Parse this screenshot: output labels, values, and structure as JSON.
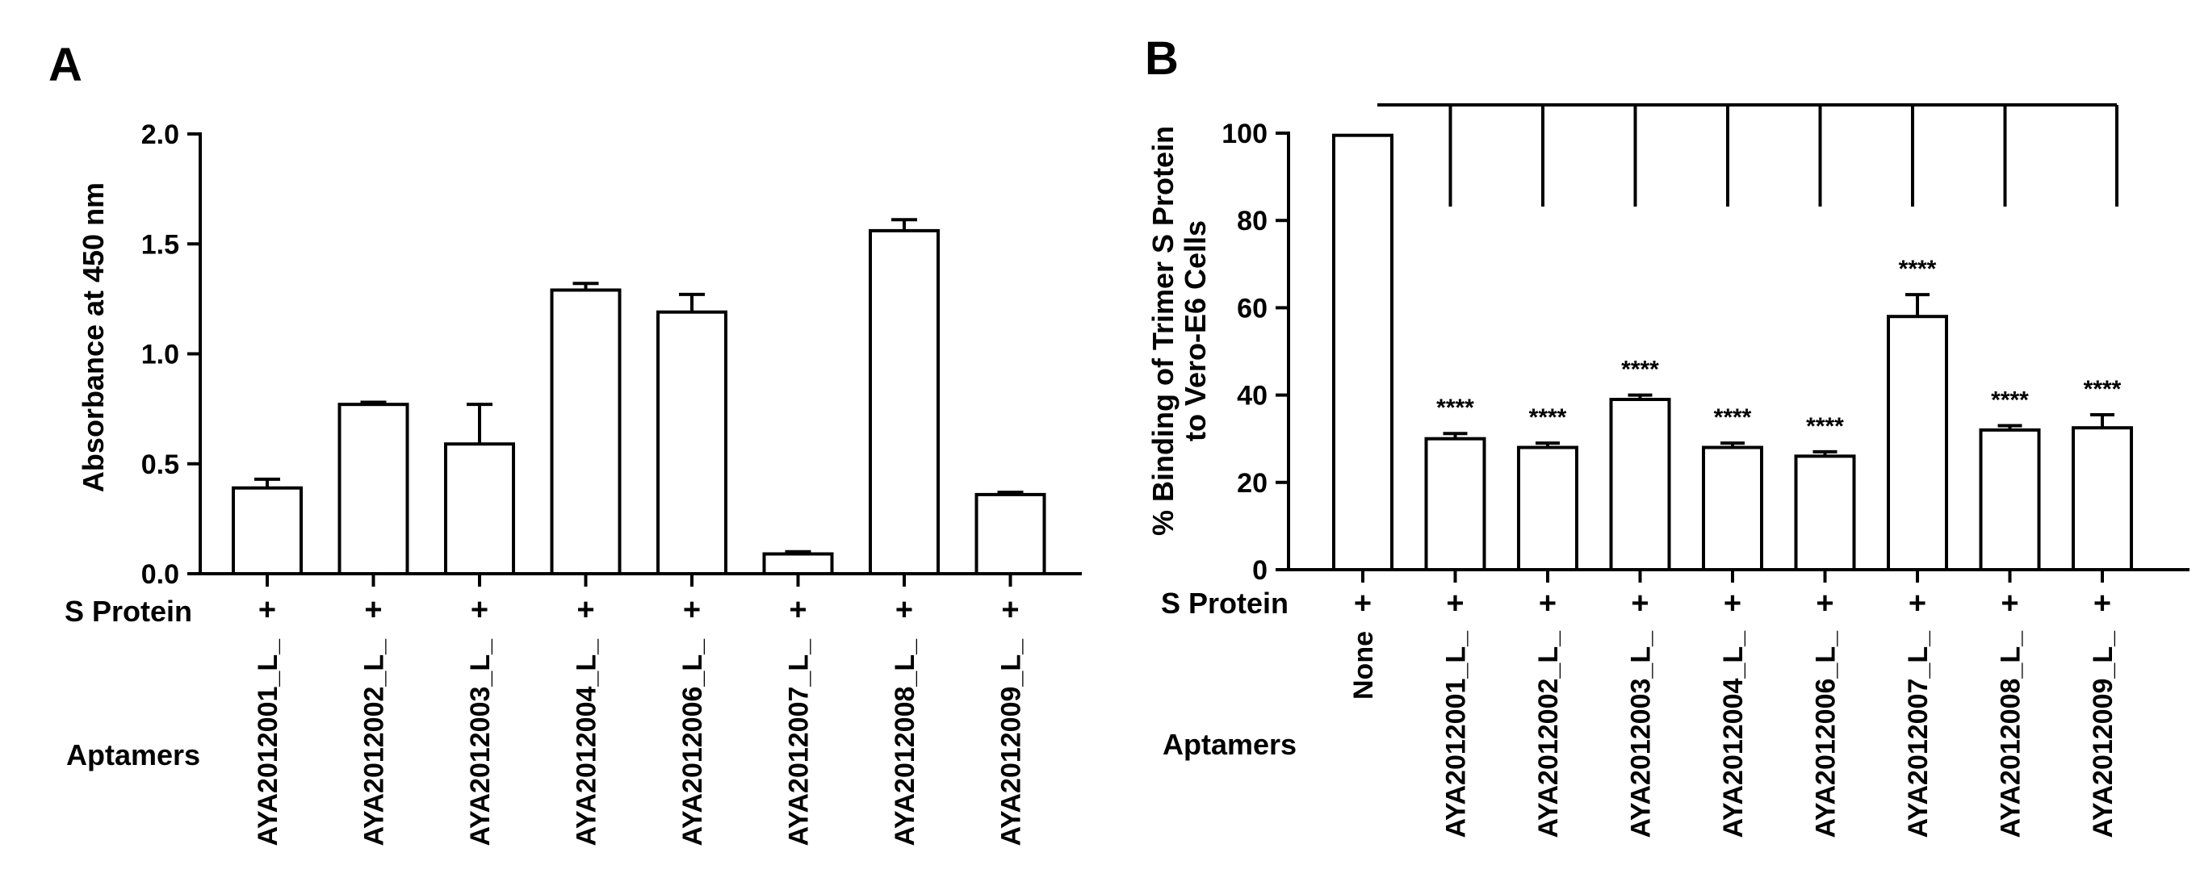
{
  "chart_data": [
    {
      "panel": "A",
      "type": "bar",
      "ylabel": "Absorbance at 450 nm",
      "ylim": [
        0,
        2.0
      ],
      "yticks": [
        "0.0",
        "0.5",
        "1.0",
        "1.5",
        "2.0"
      ],
      "ytick_values": [
        0,
        0.5,
        1.0,
        1.5,
        2.0
      ],
      "row_label_1": "S Protein",
      "row_label_2": "Aptamers",
      "plus_sign": "+",
      "categories": [
        "AYA2012001_L_",
        "AYA2012002_L_",
        "AYA2012003_L_",
        "AYA2012004_L_",
        "AYA2012006_L_",
        "AYA2012007_L_",
        "AYA2012008_L_",
        "AYA2012009_L_"
      ],
      "values": [
        0.39,
        0.77,
        0.59,
        1.29,
        1.19,
        0.09,
        1.56,
        0.36
      ],
      "errors": [
        0.04,
        0.01,
        0.18,
        0.03,
        0.08,
        0.01,
        0.05,
        0.01
      ]
    },
    {
      "panel": "B",
      "type": "bar",
      "ylabel_line1": "% Binding of  Trimer S Protein",
      "ylabel_line2": "to Vero-E6 Cells",
      "ylim": [
        0,
        100
      ],
      "yticks": [
        "0",
        "20",
        "40",
        "60",
        "80",
        "100"
      ],
      "ytick_values": [
        0,
        20,
        40,
        60,
        80,
        100
      ],
      "row_label_1": "S Protein",
      "row_label_2": "Aptamers",
      "plus_sign": "+",
      "categories": [
        "None",
        "AYA2012001_L_",
        "AYA2012002_L_",
        "AYA2012003_L_",
        "AYA2012004_L_",
        "AYA2012006_L_",
        "AYA2012007_L_",
        "AYA2012008_L_",
        "AYA2012009_L_"
      ],
      "values": [
        99.5,
        30,
        28,
        39,
        28,
        26,
        58,
        32,
        32.5
      ],
      "errors": [
        0,
        1.2,
        1,
        1,
        1,
        1,
        5,
        1,
        3
      ],
      "significance": [
        "",
        "****",
        "****",
        "****",
        "****",
        "****",
        "****",
        "****",
        "****"
      ]
    }
  ]
}
